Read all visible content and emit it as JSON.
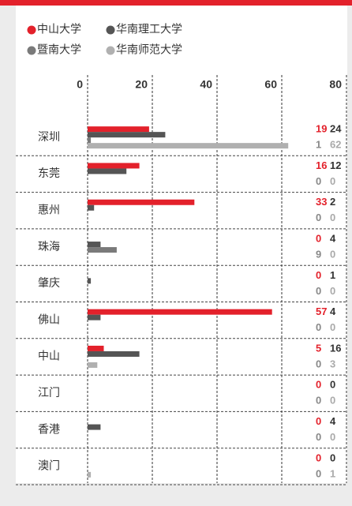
{
  "chart_data": {
    "type": "bar",
    "orientation": "horizontal",
    "categories": [
      "深圳",
      "东莞",
      "惠州",
      "珠海",
      "肇庆",
      "佛山",
      "中山",
      "江门",
      "香港",
      "澳门"
    ],
    "series": [
      {
        "name": "中山大学",
        "color": "#e3212b",
        "values": [
          19,
          16,
          33,
          0,
          0,
          57,
          5,
          0,
          0,
          0
        ]
      },
      {
        "name": "华南理工大学",
        "color": "#555555",
        "values": [
          24,
          12,
          2,
          4,
          1,
          4,
          16,
          0,
          4,
          0
        ]
      },
      {
        "name": "暨南大学",
        "color": "#7a7a7a",
        "values": [
          1,
          0,
          0,
          9,
          0,
          0,
          0,
          0,
          0,
          0
        ]
      },
      {
        "name": "华南师范大学",
        "color": "#b0b0b0",
        "values": [
          62,
          0,
          0,
          0,
          0,
          0,
          3,
          0,
          0,
          1
        ]
      }
    ],
    "xlim": [
      0,
      80
    ],
    "xticks": [
      0,
      20,
      40,
      60,
      80
    ],
    "grid": true
  }
}
